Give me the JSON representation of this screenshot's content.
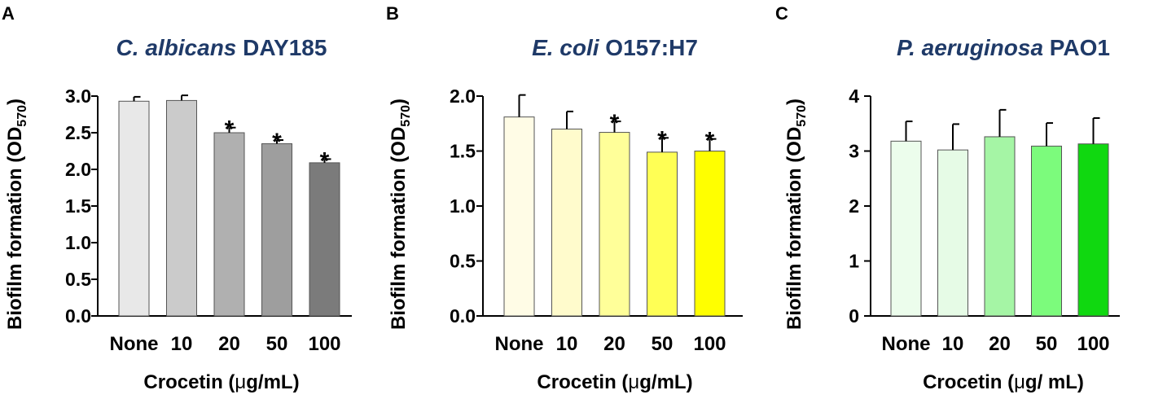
{
  "chart_data": [
    {
      "type": "bar",
      "panel": "A",
      "title_italic": "C. albicans",
      "title_rest": " DAY185",
      "xlabel_pre": "Crocetin (",
      "xlabel_mu": "μ",
      "xlabel_post": "g/mL)",
      "ylabel_main": "Biofilm formation (OD",
      "ylabel_sub": "570",
      "ylabel_close": ")",
      "ylim": [
        0,
        3.0
      ],
      "yticks": [
        "0.0",
        "0.5",
        "1.0",
        "1.5",
        "2.0",
        "2.5",
        "3.0"
      ],
      "categories": [
        "None",
        "10",
        "20",
        "50",
        "100"
      ],
      "values": [
        2.93,
        2.94,
        2.5,
        2.35,
        2.09
      ],
      "errors": [
        0.06,
        0.07,
        0.07,
        0.05,
        0.05
      ],
      "significance": [
        "",
        "",
        "*",
        "*",
        "*"
      ],
      "colors": [
        "#e8e8e8",
        "#cbcbcb",
        "#b0b0b0",
        "#9e9e9e",
        "#7b7b7b"
      ]
    },
    {
      "type": "bar",
      "panel": "B",
      "title_italic": "E. coli",
      "title_rest": " O157:H7",
      "xlabel_pre": "Crocetin (",
      "xlabel_mu": "μ",
      "xlabel_post": "g/mL)",
      "ylabel_main": "Biofilm formation (OD",
      "ylabel_sub": "570",
      "ylabel_close": ")",
      "ylim": [
        0,
        2.0
      ],
      "yticks": [
        "0.0",
        "0.5",
        "1.0",
        "1.5",
        "2.0"
      ],
      "categories": [
        "None",
        "10",
        "20",
        "50",
        "100"
      ],
      "values": [
        1.81,
        1.7,
        1.67,
        1.49,
        1.5
      ],
      "errors": [
        0.2,
        0.16,
        0.1,
        0.13,
        0.11
      ],
      "significance": [
        "",
        "",
        "*",
        "*",
        "*"
      ],
      "colors": [
        "#fffce6",
        "#fffbcc",
        "#ffff99",
        "#ffff55",
        "#ffff00"
      ]
    },
    {
      "type": "bar",
      "panel": "C",
      "title_italic": "P. aeruginosa",
      "title_rest": " PAO1",
      "xlabel_pre": "Crocetin (",
      "xlabel_mu": "μ",
      "xlabel_post": "g/ mL)",
      "ylabel_main": "Biofilm formation (OD",
      "ylabel_sub": "570",
      "ylabel_close": ")",
      "ylim": [
        0,
        4
      ],
      "yticks": [
        "0",
        "1",
        "2",
        "3",
        "4"
      ],
      "categories": [
        "None",
        "10",
        "20",
        "50",
        "100"
      ],
      "values": [
        3.18,
        3.02,
        3.26,
        3.09,
        3.13
      ],
      "errors": [
        0.36,
        0.47,
        0.49,
        0.42,
        0.47
      ],
      "significance": [
        "",
        "",
        "",
        "",
        ""
      ],
      "colors": [
        "#ecfdec",
        "#e6fbe6",
        "#a5f5a5",
        "#7cfb7c",
        "#10d810"
      ]
    }
  ]
}
